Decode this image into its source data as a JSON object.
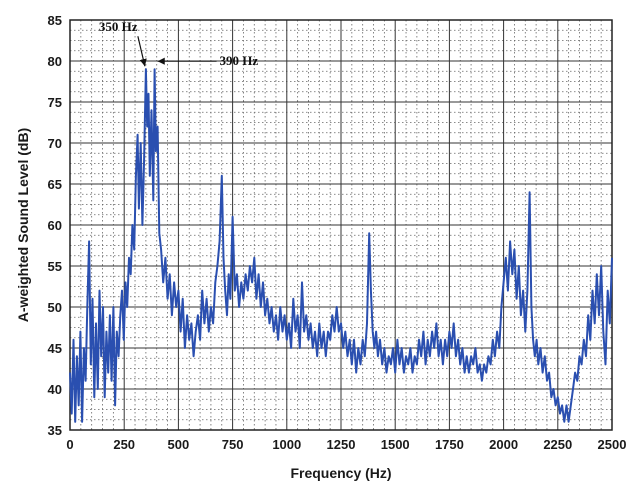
{
  "chart_data": {
    "type": "line",
    "title": "",
    "xlabel": "Frequency (Hz)",
    "ylabel": "A-weighted Sound Level (dB)",
    "xlim": [
      0,
      2500
    ],
    "ylim": [
      35,
      85
    ],
    "xticks": [
      0,
      250,
      500,
      750,
      1000,
      1250,
      1500,
      1750,
      2000,
      2250,
      2500
    ],
    "xtick_labels": [
      "0",
      "250",
      "500",
      "750",
      "1000",
      "1250",
      "1500",
      "1750",
      "2000",
      "2250",
      "2500"
    ],
    "yticks": [
      35,
      40,
      45,
      50,
      55,
      60,
      65,
      70,
      75,
      80,
      85
    ],
    "ytick_labels": [
      "35",
      "40",
      "45",
      "50",
      "55",
      "60",
      "65",
      "70",
      "75",
      "80",
      "85"
    ],
    "grid": "major solid, minor dotted",
    "series": [
      {
        "color": "#2a4fb0",
        "points": [
          [
            0,
            42
          ],
          [
            8,
            37
          ],
          [
            16,
            46
          ],
          [
            24,
            36
          ],
          [
            32,
            44
          ],
          [
            40,
            38
          ],
          [
            48,
            47
          ],
          [
            56,
            36
          ],
          [
            64,
            45
          ],
          [
            72,
            41
          ],
          [
            80,
            50
          ],
          [
            88,
            58
          ],
          [
            96,
            43
          ],
          [
            104,
            51
          ],
          [
            112,
            39
          ],
          [
            120,
            48
          ],
          [
            128,
            40
          ],
          [
            136,
            52
          ],
          [
            144,
            44
          ],
          [
            152,
            50
          ],
          [
            160,
            39
          ],
          [
            168,
            47
          ],
          [
            176,
            42
          ],
          [
            184,
            49
          ],
          [
            192,
            41
          ],
          [
            200,
            50
          ],
          [
            208,
            38
          ],
          [
            216,
            47
          ],
          [
            224,
            44
          ],
          [
            232,
            49
          ],
          [
            240,
            52
          ],
          [
            248,
            46
          ],
          [
            256,
            53
          ],
          [
            264,
            50
          ],
          [
            272,
            56
          ],
          [
            280,
            54
          ],
          [
            288,
            60
          ],
          [
            296,
            57
          ],
          [
            304,
            66
          ],
          [
            312,
            71
          ],
          [
            318,
            62
          ],
          [
            326,
            70
          ],
          [
            334,
            60
          ],
          [
            342,
            68
          ],
          [
            350,
            79
          ],
          [
            356,
            72
          ],
          [
            362,
            76
          ],
          [
            368,
            66
          ],
          [
            376,
            74
          ],
          [
            384,
            63
          ],
          [
            390,
            79
          ],
          [
            396,
            69
          ],
          [
            404,
            72
          ],
          [
            412,
            59
          ],
          [
            420,
            57
          ],
          [
            430,
            53
          ],
          [
            440,
            56
          ],
          [
            450,
            51
          ],
          [
            460,
            54
          ],
          [
            470,
            49
          ],
          [
            480,
            53
          ],
          [
            490,
            50
          ],
          [
            500,
            52
          ],
          [
            510,
            47
          ],
          [
            520,
            51
          ],
          [
            530,
            45
          ],
          [
            540,
            49
          ],
          [
            550,
            46
          ],
          [
            560,
            48
          ],
          [
            570,
            44
          ],
          [
            580,
            47
          ],
          [
            590,
            49
          ],
          [
            600,
            46
          ],
          [
            610,
            52
          ],
          [
            620,
            48
          ],
          [
            630,
            51
          ],
          [
            640,
            47
          ],
          [
            650,
            50
          ],
          [
            660,
            48
          ],
          [
            670,
            53
          ],
          [
            680,
            55
          ],
          [
            690,
            58
          ],
          [
            700,
            66
          ],
          [
            708,
            56
          ],
          [
            716,
            52
          ],
          [
            724,
            49
          ],
          [
            732,
            54
          ],
          [
            740,
            51
          ],
          [
            750,
            61
          ],
          [
            760,
            52
          ],
          [
            770,
            54
          ],
          [
            780,
            50
          ],
          [
            790,
            53
          ],
          [
            800,
            51
          ],
          [
            810,
            54
          ],
          [
            820,
            52
          ],
          [
            830,
            55
          ],
          [
            840,
            53
          ],
          [
            850,
            56
          ],
          [
            860,
            51
          ],
          [
            870,
            54
          ],
          [
            880,
            50
          ],
          [
            890,
            53
          ],
          [
            900,
            49
          ],
          [
            910,
            51
          ],
          [
            920,
            48
          ],
          [
            930,
            50
          ],
          [
            940,
            47
          ],
          [
            950,
            49
          ],
          [
            960,
            46
          ],
          [
            970,
            50
          ],
          [
            980,
            47
          ],
          [
            990,
            49
          ],
          [
            1000,
            46
          ],
          [
            1010,
            48
          ],
          [
            1020,
            45
          ],
          [
            1030,
            51
          ],
          [
            1040,
            47
          ],
          [
            1050,
            49
          ],
          [
            1060,
            45
          ],
          [
            1070,
            53
          ],
          [
            1080,
            47
          ],
          [
            1090,
            49
          ],
          [
            1100,
            46
          ],
          [
            1110,
            48
          ],
          [
            1120,
            45
          ],
          [
            1130,
            47
          ],
          [
            1140,
            44
          ],
          [
            1150,
            48
          ],
          [
            1160,
            45
          ],
          [
            1170,
            47
          ],
          [
            1180,
            44
          ],
          [
            1190,
            47
          ],
          [
            1200,
            46
          ],
          [
            1210,
            49
          ],
          [
            1220,
            47
          ],
          [
            1230,
            50
          ],
          [
            1240,
            47
          ],
          [
            1250,
            48
          ],
          [
            1260,
            45
          ],
          [
            1270,
            47
          ],
          [
            1280,
            44
          ],
          [
            1290,
            46
          ],
          [
            1300,
            43
          ],
          [
            1310,
            46
          ],
          [
            1320,
            42
          ],
          [
            1330,
            45
          ],
          [
            1340,
            43
          ],
          [
            1350,
            46
          ],
          [
            1360,
            44
          ],
          [
            1370,
            48
          ],
          [
            1380,
            59
          ],
          [
            1388,
            52
          ],
          [
            1396,
            47
          ],
          [
            1404,
            45
          ],
          [
            1412,
            47
          ],
          [
            1420,
            44
          ],
          [
            1430,
            46
          ],
          [
            1440,
            43
          ],
          [
            1450,
            45
          ],
          [
            1460,
            42
          ],
          [
            1470,
            44
          ],
          [
            1480,
            43
          ],
          [
            1490,
            45
          ],
          [
            1500,
            42
          ],
          [
            1510,
            46
          ],
          [
            1520,
            43
          ],
          [
            1530,
            45
          ],
          [
            1540,
            42
          ],
          [
            1550,
            44
          ],
          [
            1560,
            43
          ],
          [
            1570,
            45
          ],
          [
            1580,
            42
          ],
          [
            1590,
            44
          ],
          [
            1600,
            43
          ],
          [
            1610,
            46
          ],
          [
            1620,
            44
          ],
          [
            1630,
            47
          ],
          [
            1640,
            43
          ],
          [
            1650,
            46
          ],
          [
            1660,
            44
          ],
          [
            1670,
            47
          ],
          [
            1680,
            45
          ],
          [
            1690,
            48
          ],
          [
            1700,
            44
          ],
          [
            1710,
            46
          ],
          [
            1720,
            43
          ],
          [
            1730,
            46
          ],
          [
            1740,
            44
          ],
          [
            1750,
            47
          ],
          [
            1760,
            45
          ],
          [
            1770,
            48
          ],
          [
            1780,
            44
          ],
          [
            1790,
            46
          ],
          [
            1800,
            43
          ],
          [
            1810,
            45
          ],
          [
            1820,
            42
          ],
          [
            1830,
            44
          ],
          [
            1840,
            42
          ],
          [
            1850,
            44
          ],
          [
            1860,
            43
          ],
          [
            1870,
            45
          ],
          [
            1880,
            42
          ],
          [
            1890,
            43
          ],
          [
            1900,
            41
          ],
          [
            1910,
            43
          ],
          [
            1920,
            42
          ],
          [
            1930,
            44
          ],
          [
            1940,
            43
          ],
          [
            1950,
            46
          ],
          [
            1960,
            44
          ],
          [
            1970,
            47
          ],
          [
            1980,
            45
          ],
          [
            1990,
            50
          ],
          [
            2000,
            53
          ],
          [
            2010,
            56
          ],
          [
            2020,
            52
          ],
          [
            2030,
            58
          ],
          [
            2040,
            54
          ],
          [
            2050,
            57
          ],
          [
            2060,
            51
          ],
          [
            2070,
            55
          ],
          [
            2080,
            49
          ],
          [
            2090,
            52
          ],
          [
            2100,
            47
          ],
          [
            2110,
            52
          ],
          [
            2120,
            64
          ],
          [
            2128,
            50
          ],
          [
            2136,
            46
          ],
          [
            2144,
            44
          ],
          [
            2152,
            46
          ],
          [
            2160,
            43
          ],
          [
            2170,
            45
          ],
          [
            2180,
            42
          ],
          [
            2190,
            44
          ],
          [
            2200,
            41
          ],
          [
            2210,
            42
          ],
          [
            2220,
            39
          ],
          [
            2230,
            40
          ],
          [
            2240,
            38
          ],
          [
            2250,
            39
          ],
          [
            2260,
            37
          ],
          [
            2270,
            38
          ],
          [
            2280,
            36
          ],
          [
            2290,
            38
          ],
          [
            2300,
            36
          ],
          [
            2310,
            38
          ],
          [
            2320,
            40
          ],
          [
            2330,
            42
          ],
          [
            2340,
            41
          ],
          [
            2350,
            44
          ],
          [
            2360,
            43
          ],
          [
            2370,
            46
          ],
          [
            2380,
            44
          ],
          [
            2390,
            49
          ],
          [
            2400,
            46
          ],
          [
            2410,
            52
          ],
          [
            2420,
            48
          ],
          [
            2430,
            54
          ],
          [
            2440,
            49
          ],
          [
            2450,
            55
          ],
          [
            2460,
            47
          ],
          [
            2470,
            43
          ],
          [
            2480,
            52
          ],
          [
            2490,
            48
          ],
          [
            2500,
            56
          ]
        ]
      }
    ],
    "annotations": [
      {
        "text": "350 Hz",
        "x": 350,
        "y": 79
      },
      {
        "text": "390 Hz",
        "x": 390,
        "y": 79
      }
    ]
  }
}
